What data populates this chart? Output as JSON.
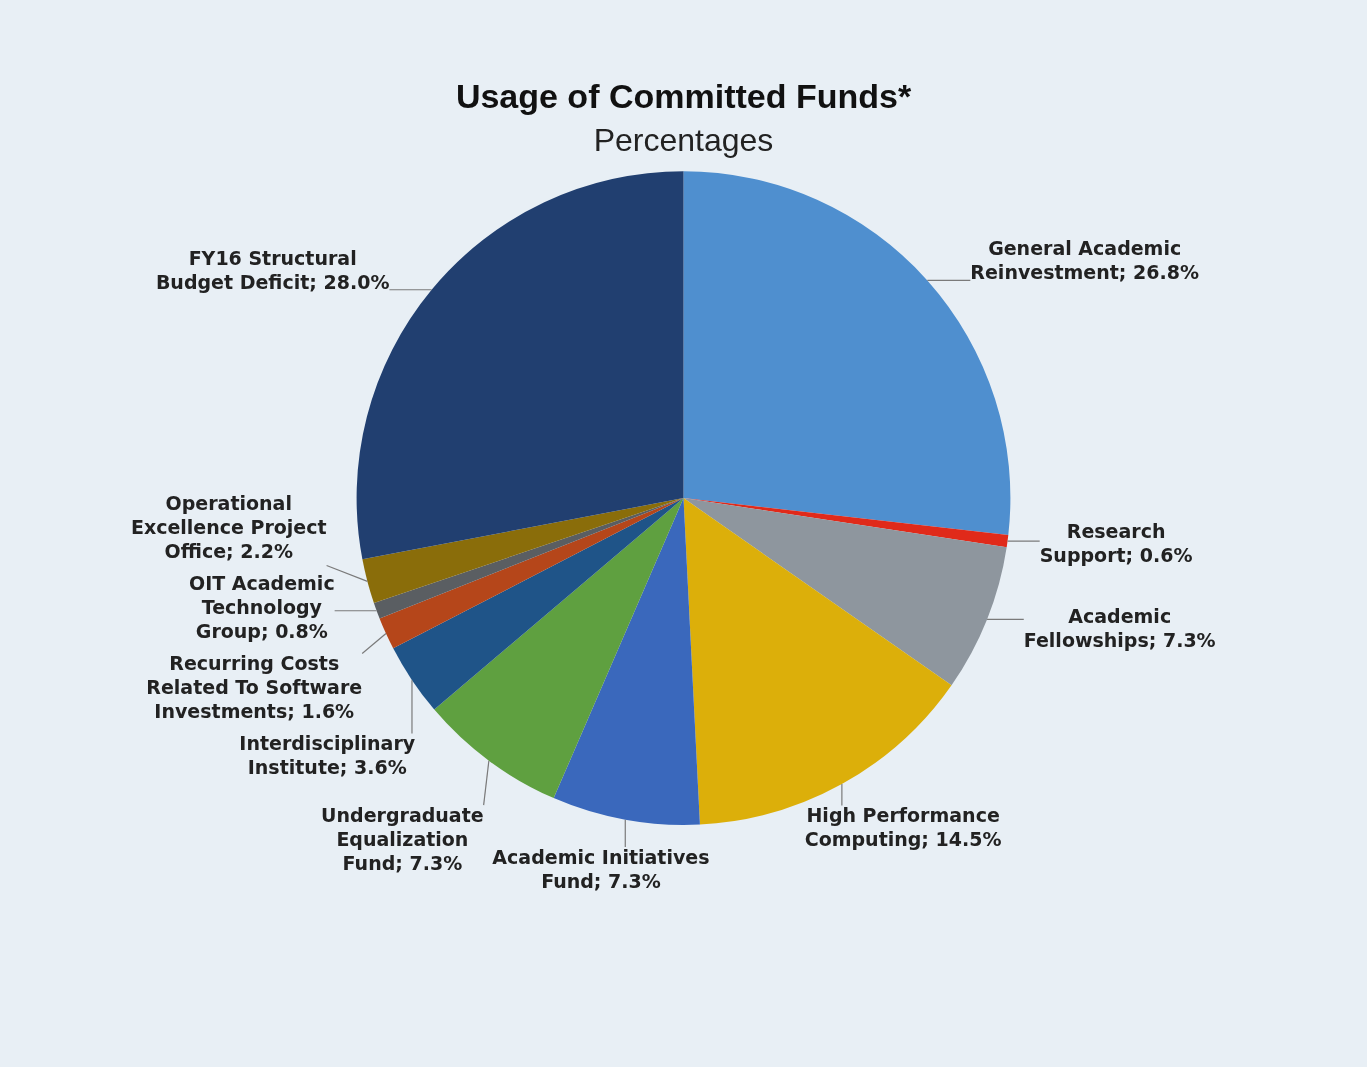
{
  "chart_data": {
    "type": "pie",
    "title": "Usage of Committed Funds*",
    "subtitle": "Percentages",
    "categories": [
      "General Academic Reinvestment",
      "Research Support",
      "Academic Fellowships",
      "High Performance Computing",
      "Academic Initiatives Fund",
      "Undergraduate Equalization Fund",
      "Interdisciplinary Institute",
      "Recurring Costs Related To Software Investments",
      "OIT Academic Technology Group",
      "Operational Excellence Project Office",
      "FY16 Structural Budget Deficit"
    ],
    "values": [
      26.8,
      0.6,
      7.3,
      14.5,
      7.3,
      7.3,
      3.6,
      1.6,
      0.8,
      2.2,
      28.0
    ],
    "value_labels": [
      "26.8%",
      "0.6%",
      "7.3%",
      "14.5%",
      "7.3%",
      "7.3%",
      "3.6%",
      "1.6%",
      "0.8%",
      "2.2%",
      "28.0%"
    ],
    "colors": [
      "#4f8fcf",
      "#e02a1a",
      "#8e969e",
      "#dcaf0a",
      "#3a68bc",
      "#5fa040",
      "#1f5488",
      "#b5461a",
      "#5a5e62",
      "#8a6d0a",
      "#213f70"
    ],
    "legend": false
  }
}
